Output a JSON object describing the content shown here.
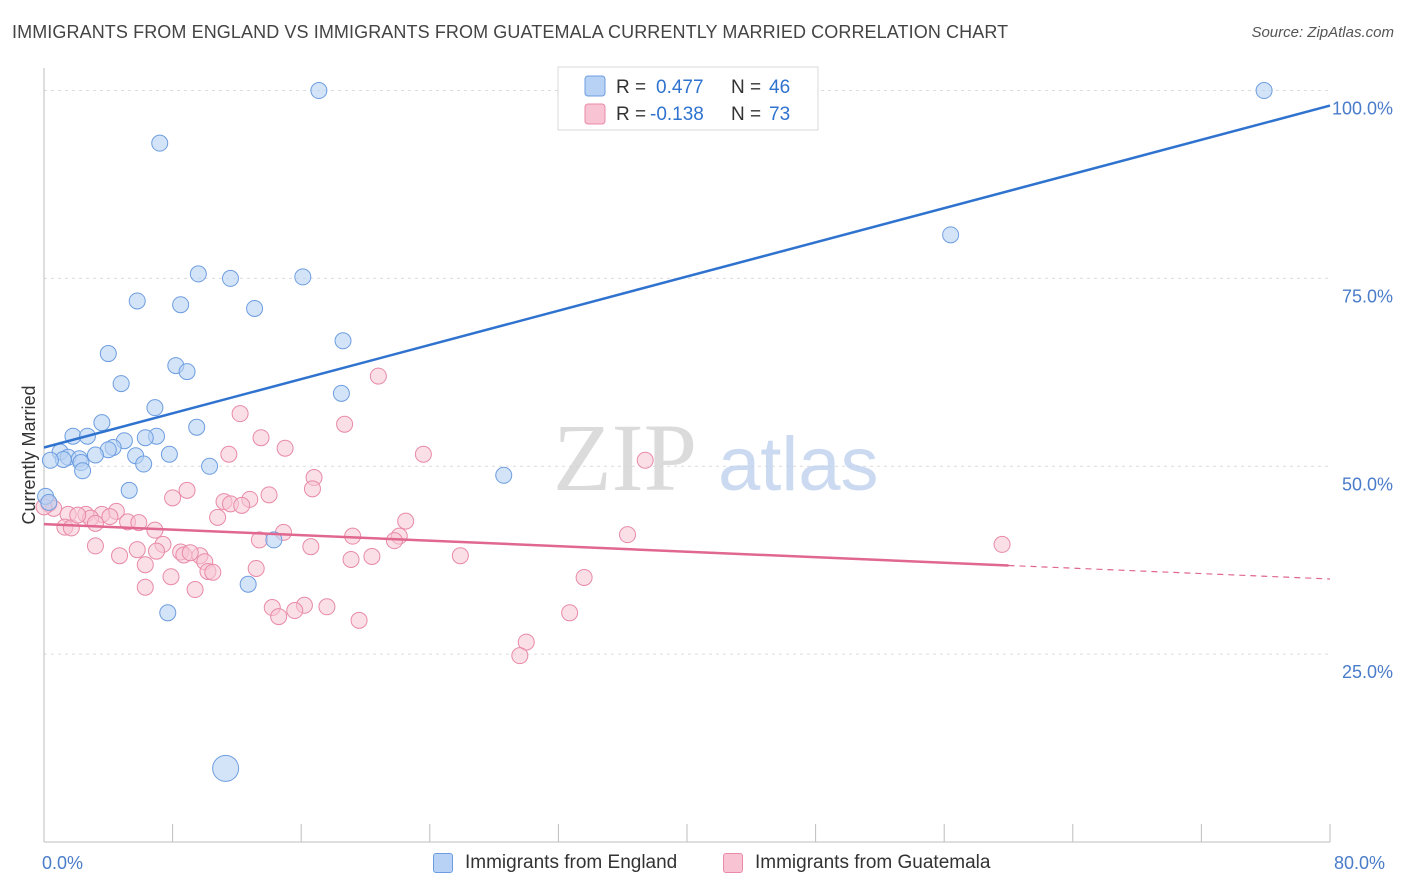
{
  "title": "IMMIGRANTS FROM ENGLAND VS IMMIGRANTS FROM GUATEMALA CURRENTLY MARRIED CORRELATION CHART",
  "source": "Source: ZipAtlas.com",
  "watermark": {
    "zip": "ZIP",
    "atlas": "atlas"
  },
  "colors": {
    "england_fill": "#b7d2f4",
    "england_stroke": "#6d9de0",
    "england_line": "#2f73cf",
    "guatemala_fill": "#f8c4d4",
    "guatemala_stroke": "#e88aa8",
    "guatemala_line": "#e0678f",
    "axis_label": "#4a7cc9"
  },
  "legend_top": {
    "england": {
      "r_label": "R =",
      "r_value": "0.477",
      "n_label": "N =",
      "n_value": "46"
    },
    "guatemala": {
      "r_label": "R =",
      "r_value": "-0.138",
      "n_label": "N =",
      "n_value": "73"
    }
  },
  "legend_bottom": {
    "england": "Immigrants from England",
    "guatemala": "Immigrants from Guatemala"
  },
  "chart_data": {
    "type": "scatter",
    "xlabel": "",
    "ylabel": "Currently Married",
    "xlim": [
      0,
      80
    ],
    "ylim": [
      0,
      103
    ],
    "x_tick_labels": {
      "min": "0.0%",
      "max": "80.0%"
    },
    "y_ticks": [
      {
        "value": 25,
        "label": "25.0%"
      },
      {
        "value": 50,
        "label": "50.0%"
      },
      {
        "value": 75,
        "label": "75.0%"
      },
      {
        "value": 100,
        "label": "100.0%"
      }
    ],
    "grid": true,
    "legend_position": "top-center",
    "series": [
      {
        "name": "Immigrants from England",
        "r": 0.477,
        "n": 46,
        "trend": {
          "x": [
            0,
            80
          ],
          "y": [
            52.5,
            98.0
          ],
          "style": "solid"
        },
        "points": [
          [
            17.1,
            100
          ],
          [
            75.9,
            100
          ],
          [
            7.2,
            93
          ],
          [
            56.4,
            80.8
          ],
          [
            9.6,
            75.6
          ],
          [
            11.6,
            75
          ],
          [
            16.1,
            75.2
          ],
          [
            5.8,
            72
          ],
          [
            8.5,
            71.5
          ],
          [
            13.1,
            71
          ],
          [
            18.6,
            66.7
          ],
          [
            4.0,
            65
          ],
          [
            8.2,
            63.4
          ],
          [
            8.9,
            62.6
          ],
          [
            4.8,
            61
          ],
          [
            18.5,
            59.7
          ],
          [
            6.9,
            57.8
          ],
          [
            3.6,
            55.8
          ],
          [
            9.5,
            55.2
          ],
          [
            1.8,
            54
          ],
          [
            2.7,
            54
          ],
          [
            7.0,
            54
          ],
          [
            6.3,
            53.8
          ],
          [
            5.0,
            53.4
          ],
          [
            1.0,
            51.9
          ],
          [
            4.3,
            52.5
          ],
          [
            4.0,
            52.2
          ],
          [
            3.2,
            51.5
          ],
          [
            5.7,
            51.4
          ],
          [
            7.8,
            51.6
          ],
          [
            1.5,
            51.2
          ],
          [
            1.2,
            50.9
          ],
          [
            2.2,
            51.0
          ],
          [
            2.3,
            50.5
          ],
          [
            6.2,
            50.3
          ],
          [
            2.4,
            49.4
          ],
          [
            10.3,
            50.0
          ],
          [
            28.6,
            48.8
          ],
          [
            5.3,
            46.8
          ],
          [
            0.4,
            50.8
          ],
          [
            0.1,
            46.0
          ],
          [
            14.3,
            40.2
          ],
          [
            12.7,
            34.3
          ],
          [
            7.7,
            30.5
          ],
          [
            11.3,
            9.8
          ],
          [
            0.3,
            45.2
          ]
        ]
      },
      {
        "name": "Immigrants from Guatemala",
        "r": -0.138,
        "n": 73,
        "trend": {
          "x": [
            0,
            60,
            80
          ],
          "y": [
            42.3,
            36.8,
            35.0
          ],
          "style": "solid-then-dashed",
          "solid_until": 60
        },
        "points": [
          [
            20.8,
            62
          ],
          [
            12.2,
            57
          ],
          [
            18.7,
            55.6
          ],
          [
            13.5,
            53.8
          ],
          [
            15.0,
            52.4
          ],
          [
            11.5,
            51.6
          ],
          [
            23.6,
            51.6
          ],
          [
            37.4,
            50.8
          ],
          [
            16.8,
            48.5
          ],
          [
            16.7,
            47.0
          ],
          [
            8.9,
            46.8
          ],
          [
            8.0,
            45.8
          ],
          [
            14.0,
            46.2
          ],
          [
            12.8,
            45.6
          ],
          [
            11.2,
            45.3
          ],
          [
            11.6,
            45.0
          ],
          [
            0.3,
            45.0
          ],
          [
            0.6,
            44.4
          ],
          [
            1.5,
            43.6
          ],
          [
            2.6,
            43.6
          ],
          [
            4.5,
            44.0
          ],
          [
            3.6,
            43.6
          ],
          [
            4.1,
            43.3
          ],
          [
            10.8,
            43.2
          ],
          [
            2.9,
            43.1
          ],
          [
            22.5,
            42.7
          ],
          [
            5.2,
            42.6
          ],
          [
            5.9,
            42.5
          ],
          [
            3.2,
            42.4
          ],
          [
            1.3,
            41.9
          ],
          [
            1.7,
            41.8
          ],
          [
            6.9,
            41.5
          ],
          [
            14.9,
            41.2
          ],
          [
            36.3,
            40.9
          ],
          [
            22.1,
            40.7
          ],
          [
            19.2,
            40.7
          ],
          [
            13.4,
            40.2
          ],
          [
            21.8,
            40.1
          ],
          [
            7.4,
            39.6
          ],
          [
            3.2,
            39.4
          ],
          [
            16.6,
            39.3
          ],
          [
            59.6,
            39.6
          ],
          [
            5.8,
            38.9
          ],
          [
            7.0,
            38.7
          ],
          [
            8.5,
            38.6
          ],
          [
            8.7,
            38.2
          ],
          [
            4.7,
            38.1
          ],
          [
            20.4,
            38.0
          ],
          [
            25.9,
            38.1
          ],
          [
            9.7,
            38.1
          ],
          [
            19.1,
            37.6
          ],
          [
            10.0,
            37.3
          ],
          [
            6.3,
            36.9
          ],
          [
            13.2,
            36.4
          ],
          [
            10.2,
            36.0
          ],
          [
            10.5,
            35.9
          ],
          [
            7.9,
            35.3
          ],
          [
            33.6,
            35.2
          ],
          [
            6.3,
            33.9
          ],
          [
            9.4,
            33.6
          ],
          [
            14.2,
            31.2
          ],
          [
            16.2,
            31.5
          ],
          [
            15.6,
            30.8
          ],
          [
            17.6,
            31.3
          ],
          [
            14.6,
            30.0
          ],
          [
            32.7,
            30.5
          ],
          [
            19.6,
            29.5
          ],
          [
            30.0,
            26.6
          ],
          [
            29.6,
            24.8
          ],
          [
            0.0,
            44.6
          ],
          [
            2.1,
            43.5
          ],
          [
            9.1,
            38.5
          ],
          [
            12.3,
            44.8
          ]
        ]
      }
    ]
  }
}
